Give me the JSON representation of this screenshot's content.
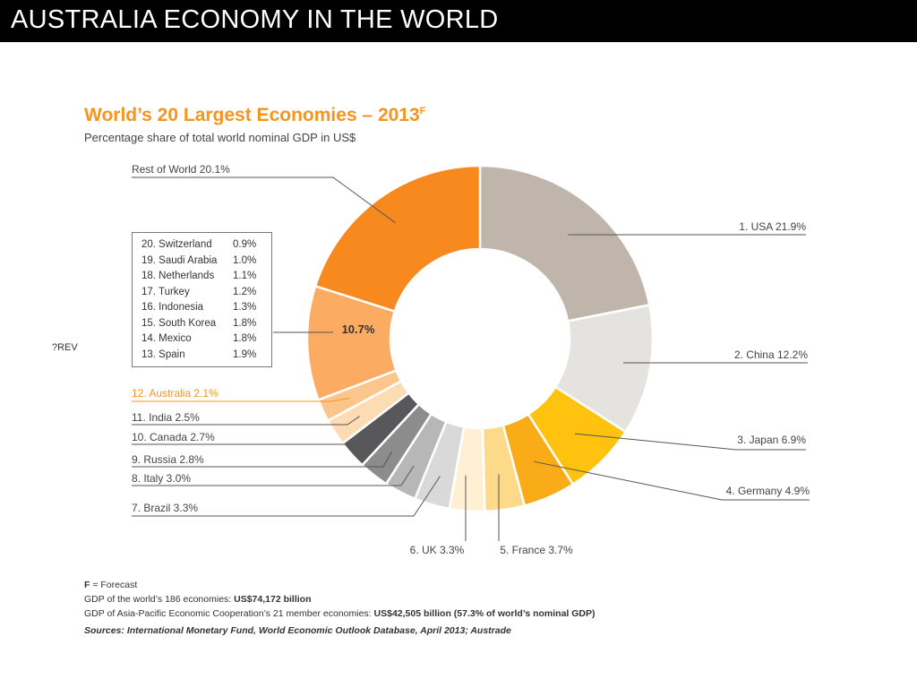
{
  "slide_title": "AUSTRALIA  ECONOMY IN THE WORLD",
  "prev_label": "?REV",
  "chart_data": {
    "type": "pie",
    "title": "World’s 20 Largest Economies – 2013",
    "title_superscript": "F",
    "subtitle": "Percentage share of total world nominal GDP in US$",
    "unit": "%",
    "slices": [
      {
        "label": "1. USA 21.9%",
        "value": 21.9,
        "color": "#bfb5aa"
      },
      {
        "label": "2. China 12.2%",
        "value": 12.2,
        "color": "#e5e3df"
      },
      {
        "label": "3. Japan 6.9%",
        "value": 6.9,
        "color": "#ffc20e"
      },
      {
        "label": "4. Germany 4.9%",
        "value": 4.9,
        "color": "#f9ab18"
      },
      {
        "label": "5. France 3.7%",
        "value": 3.7,
        "color": "#fdd98a"
      },
      {
        "label": "6. UK 3.3%",
        "value": 3.3,
        "color": "#fff0d3"
      },
      {
        "label": "7.  Brazil 3.3%",
        "value": 3.3,
        "color": "#d9d9d9"
      },
      {
        "label": "8.  Italy 3.0%",
        "value": 3.0,
        "color": "#b7b7b7"
      },
      {
        "label": "9.  Russia 2.8%",
        "value": 2.8,
        "color": "#8c8c8c"
      },
      {
        "label": "10. Canada 2.7%",
        "value": 2.7,
        "color": "#58585a"
      },
      {
        "label": "11. India 2.5%",
        "value": 2.5,
        "color": "#fddcb4"
      },
      {
        "label": "12. Australia 2.1%",
        "value": 2.1,
        "color": "#fbc58b"
      },
      {
        "label": "10.7%",
        "value": 10.7,
        "color": "#fbab62"
      },
      {
        "label": "Rest of World 20.1%",
        "value": 20.1,
        "color": "#f7891f"
      }
    ],
    "small_economies": [
      {
        "name": "20.  Switzerland",
        "value": "0.9%"
      },
      {
        "name": "19.  Saudi Arabia",
        "value": "1.0%"
      },
      {
        "name": "18.  Netherlands",
        "value": "1.1%"
      },
      {
        "name": "17.  Turkey",
        "value": "1.2%"
      },
      {
        "name": "16.  Indonesia",
        "value": "1.3%"
      },
      {
        "name": "15.  South Korea",
        "value": "1.8%"
      },
      {
        "name": "14.  Mexico",
        "value": "1.8%"
      },
      {
        "name": "13.  Spain",
        "value": "1.9%"
      }
    ],
    "highlight_color": "#f7941d"
  },
  "footnotes": {
    "forecast_key": "F",
    "forecast_text": " = Forecast",
    "world_gdp_prefix": "GDP of the world’s 186 economies: ",
    "world_gdp_value": "US$74,172 billion",
    "apec_prefix": "GDP of Asia-Pacific Economic Cooperation’s 21 member economies: ",
    "apec_value": "US$42,505 billion (57.3% of world’s nominal GDP)",
    "sources": "Sources: International Monetary Fund, World Economic Outlook Database, April 2013; Austrade"
  }
}
